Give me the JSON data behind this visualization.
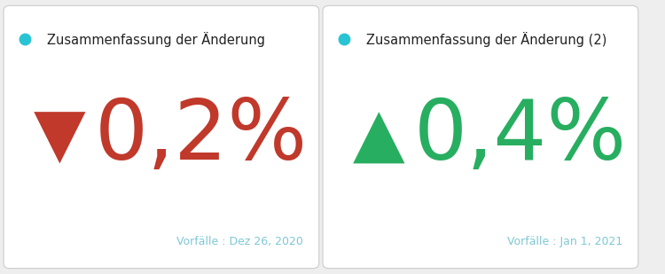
{
  "panels": [
    {
      "title": "Zusammenfassung der Änderung",
      "dot_color": "#29c4d4",
      "arrow": "▼",
      "value": "0,2%",
      "arrow_color": "#c0392b",
      "value_color": "#c0392b",
      "footnote": "Vorfälle : Dez 26, 2020",
      "footnote_color": "#7fc8d4"
    },
    {
      "title": "Zusammenfassung der Änderung (2)",
      "dot_color": "#29c4d4",
      "arrow": "▲",
      "value": "0,4%",
      "arrow_color": "#27ae60",
      "value_color": "#27ae60",
      "footnote": "Vorfälle : Jan 1, 2021",
      "footnote_color": "#7fc8d4"
    }
  ],
  "fig_bg": "#eeeeee",
  "card_bg": "#ffffff",
  "border_color": "#cccccc",
  "title_color": "#222222",
  "title_fontsize": 10.5,
  "value_fontsize": 68,
  "arrow_fontsize": 55,
  "footnote_fontsize": 9,
  "dot_size": 9
}
